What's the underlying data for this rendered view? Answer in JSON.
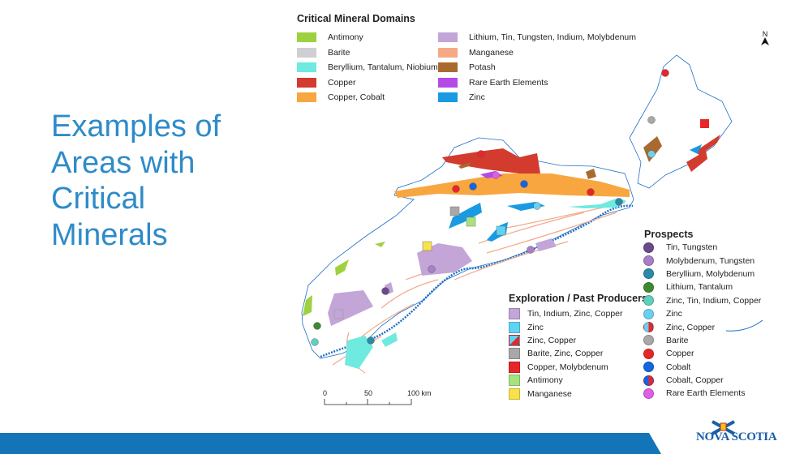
{
  "slide": {
    "title_lines": [
      "Examples of",
      "Areas with",
      "Critical",
      "Minerals"
    ]
  },
  "domains_legend": {
    "title": "Critical Mineral Domains",
    "items": [
      {
        "label": "Antimony",
        "color": "#9ed13f"
      },
      {
        "label": "Barite",
        "color": "#cfcfd3"
      },
      {
        "label": "Beryllium, Tantalum, Niobium",
        "color": "#6eeadf"
      },
      {
        "label": "Copper",
        "color": "#d23b2e"
      },
      {
        "label": "Copper, Cobalt",
        "color": "#f8a640"
      },
      {
        "label": "Lithium, Tin, Tungsten, Indium, Molybdenum",
        "color": "#c3a5d8"
      },
      {
        "label": "Manganese",
        "color": "#f7a886"
      },
      {
        "label": "Potash",
        "color": "#a86a2f"
      },
      {
        "label": "Rare Earth Elements",
        "color": "#b44be6"
      },
      {
        "label": "Zinc",
        "color": "#1a9ae2"
      }
    ]
  },
  "exploration_legend": {
    "title": "Exploration / Past Producers",
    "items": [
      {
        "label": "Tin, Indium, Zinc, Copper",
        "color": "#c3a5d8"
      },
      {
        "label": "Zinc",
        "color": "#5fd3f4"
      },
      {
        "label": "Zinc, Copper",
        "color": "#5fd3f4",
        "color2": "#e8262a"
      },
      {
        "label": "Barite, Zinc, Copper",
        "color": "#a8a8a8"
      },
      {
        "label": "Copper, Molybdenum",
        "color": "#e8262a"
      },
      {
        "label": "Antimony",
        "color": "#a7e37c"
      },
      {
        "label": "Manganese",
        "color": "#f8e24a"
      }
    ]
  },
  "prospects_legend": {
    "title": "Prospects",
    "items": [
      {
        "label": "Tin, Tungsten",
        "color": "#6b4a8a"
      },
      {
        "label": "Molybdenum, Tungsten",
        "color": "#a77fc7"
      },
      {
        "label": "Beryllium, Molybdenum",
        "color": "#2a8aa8"
      },
      {
        "label": "Lithium, Tantalum",
        "color": "#3e8a32"
      },
      {
        "label": "Zinc, Tin, Indium, Copper",
        "color": "#5fd0bd"
      },
      {
        "label": "Zinc",
        "color": "#6ccff0"
      },
      {
        "label": "Zinc, Copper",
        "color": "#6ccff0",
        "color2": "#e8262a"
      },
      {
        "label": "Barite",
        "color": "#a8a8a8"
      },
      {
        "label": "Copper",
        "color": "#e8262a"
      },
      {
        "label": "Cobalt",
        "color": "#1565e0"
      },
      {
        "label": "Cobalt, Copper",
        "color": "#1565e0",
        "color2": "#e8262a"
      },
      {
        "label": "Rare Earth Elements",
        "color": "#dd5ee8"
      }
    ]
  },
  "scale_bar": {
    "labels": [
      "0",
      "50",
      "100 km"
    ]
  },
  "north_arrow": {
    "label": "N"
  },
  "logo": {
    "text": "NOVA SCOTIA"
  },
  "colors": {
    "title": "#2e8bc9",
    "bar": "#1474b8",
    "coast": "#1f6fc8"
  }
}
